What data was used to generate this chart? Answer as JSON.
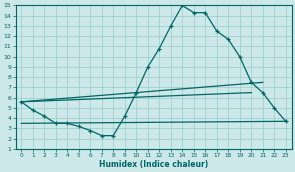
{
  "bg_color": "#cce8e8",
  "grid_color": "#99cccc",
  "line_color": "#006666",
  "xlabel": "Humidex (Indice chaleur)",
  "xlim": [
    -0.5,
    23.5
  ],
  "ylim": [
    1,
    15
  ],
  "xticks": [
    0,
    1,
    2,
    3,
    4,
    5,
    6,
    7,
    8,
    9,
    10,
    11,
    12,
    13,
    14,
    15,
    16,
    17,
    18,
    19,
    20,
    21,
    22,
    23
  ],
  "yticks": [
    1,
    2,
    3,
    4,
    5,
    6,
    7,
    8,
    9,
    10,
    11,
    12,
    13,
    14,
    15
  ],
  "main_x": [
    0,
    1,
    2,
    3,
    4,
    5,
    6,
    7,
    8,
    9,
    10,
    11,
    12,
    13,
    14,
    15,
    16,
    17,
    18,
    19,
    20,
    21,
    22,
    23
  ],
  "main_y": [
    5.6,
    4.8,
    4.2,
    3.5,
    3.5,
    3.2,
    2.8,
    2.3,
    2.3,
    4.2,
    6.5,
    9.0,
    10.8,
    13.0,
    15.0,
    14.3,
    14.3,
    12.5,
    11.7,
    10.0,
    7.5,
    6.5,
    5.0,
    3.7
  ],
  "line2_x": [
    0,
    21
  ],
  "line2_y": [
    5.6,
    7.5
  ],
  "line3_x": [
    0,
    20
  ],
  "line3_y": [
    5.6,
    6.5
  ],
  "line4_x": [
    0,
    23
  ],
  "line4_y": [
    3.5,
    3.7
  ]
}
